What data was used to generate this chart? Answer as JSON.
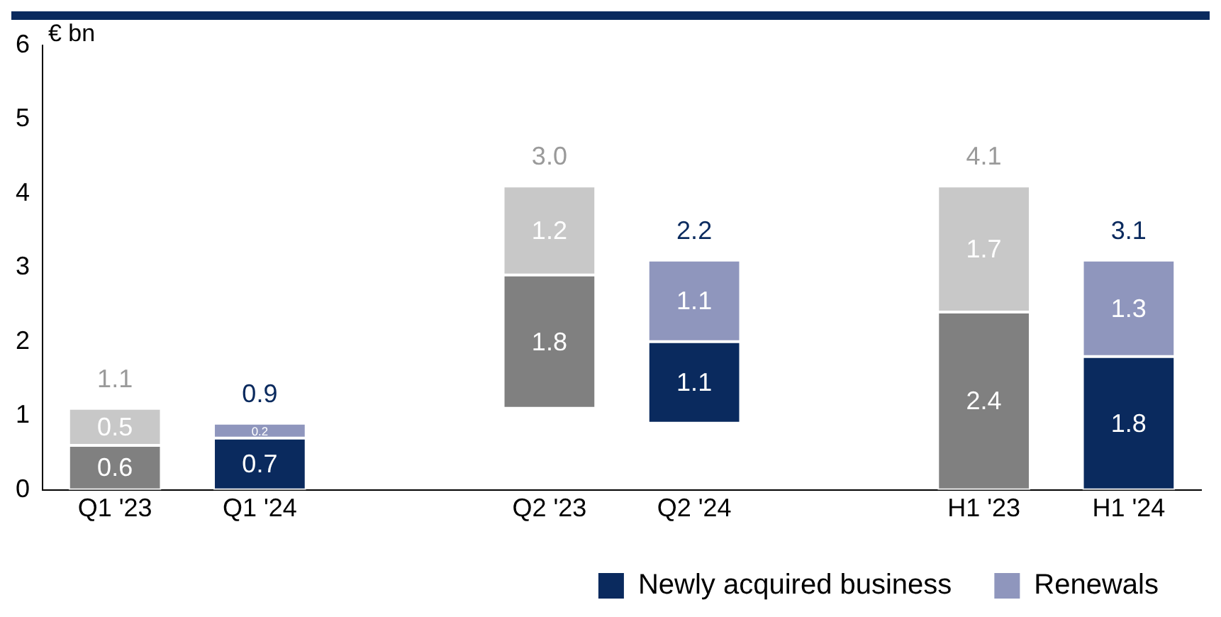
{
  "chart_data": {
    "type": "bar",
    "ylabel": "€ bn",
    "categories": [
      "Q1 '23",
      "Q1 '24",
      null,
      "Q2 '23",
      "Q2 '24",
      null,
      "H1 '23",
      "H1 '24"
    ],
    "series": [
      {
        "name": "Newly acquired business",
        "color": "#0a2a5e",
        "colors": [
          "#808080",
          "#0a2a5e",
          null,
          "#808080",
          "#0a2a5e",
          null,
          "#808080",
          "#0a2a5e"
        ],
        "base": [
          0,
          0,
          null,
          1.1,
          0.9,
          null,
          0,
          0
        ],
        "values": [
          0.6,
          0.7,
          null,
          1.8,
          1.1,
          null,
          2.4,
          1.8
        ]
      },
      {
        "name": "Renewals",
        "color": "#8f96bd",
        "colors": [
          "#c8c8c8",
          "#8f96bd",
          null,
          "#c8c8c8",
          "#8f96bd",
          null,
          "#c8c8c8",
          "#8f96bd"
        ],
        "base": [
          0.6,
          0.7,
          null,
          2.9,
          2.0,
          null,
          2.4,
          1.8
        ],
        "values": [
          0.5,
          0.2,
          null,
          1.2,
          1.1,
          null,
          1.7,
          1.3
        ]
      }
    ],
    "totals": [
      "1.1",
      "0.9",
      null,
      "3.0",
      "2.2",
      null,
      "4.1",
      "3.1"
    ],
    "data_labels": true,
    "ylim": [
      0,
      6
    ],
    "yticks": [
      0,
      1,
      2,
      3,
      4,
      5,
      6
    ],
    "grid": false,
    "legend": "bottom right"
  }
}
